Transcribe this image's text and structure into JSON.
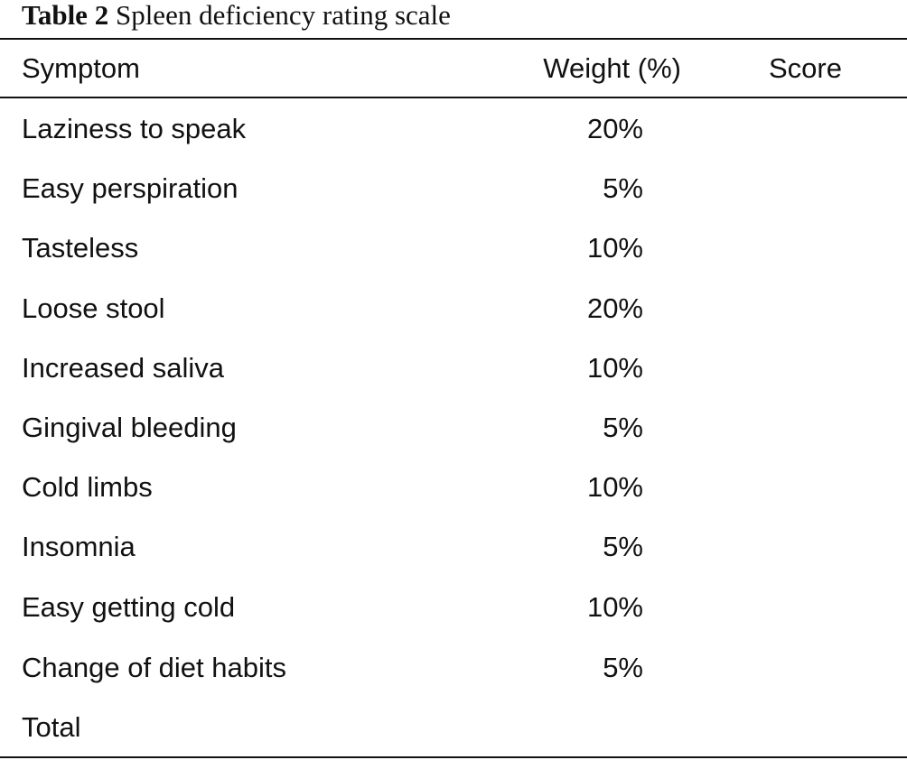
{
  "caption": {
    "label": "Table 2",
    "title": "Spleen deficiency rating scale"
  },
  "columns": {
    "symptom": "Symptom",
    "weight": "Weight (%)",
    "score": "Score"
  },
  "rows": [
    {
      "symptom": "Laziness to speak",
      "weight": "20%",
      "score": ""
    },
    {
      "symptom": "Easy perspiration",
      "weight": "5%",
      "score": ""
    },
    {
      "symptom": "Tasteless",
      "weight": "10%",
      "score": ""
    },
    {
      "symptom": "Loose stool",
      "weight": "20%",
      "score": ""
    },
    {
      "symptom": "Increased saliva",
      "weight": "10%",
      "score": ""
    },
    {
      "symptom": "Gingival bleeding",
      "weight": "5%",
      "score": ""
    },
    {
      "symptom": "Cold limbs",
      "weight": "10%",
      "score": ""
    },
    {
      "symptom": "Insomnia",
      "weight": "5%",
      "score": ""
    },
    {
      "symptom": "Easy getting cold",
      "weight": "10%",
      "score": ""
    },
    {
      "symptom": "Change of diet habits",
      "weight": "5%",
      "score": ""
    },
    {
      "symptom": "Total",
      "weight": "",
      "score": ""
    }
  ]
}
